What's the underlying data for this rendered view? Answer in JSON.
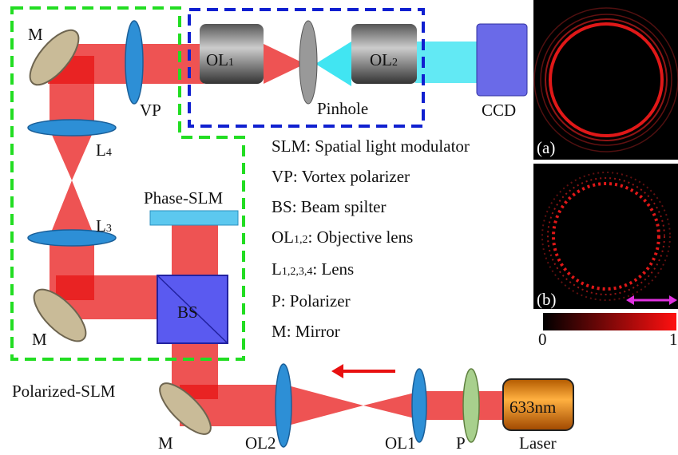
{
  "setup": {
    "mirror_top": "M",
    "vp": "VP",
    "ol1_top": {
      "name": "OL",
      "index": "1"
    },
    "ol2_top": {
      "name": "OL",
      "index": "2"
    },
    "pinhole": "Pinhole",
    "ccd": "CCD",
    "l4": {
      "name": "L",
      "index": "4"
    },
    "l3": {
      "name": "L",
      "index": "3"
    },
    "phase_slm": "Phase-SLM",
    "bs": "BS",
    "mirror_left": "M",
    "polarized_slm": "Polarized-SLM",
    "mirror_bottom": "M",
    "ol2_bottom": "OL2",
    "ol1_bottom": "OL1",
    "p": "P",
    "laser_wavelength": "633nm",
    "laser": "Laser"
  },
  "legend": [
    {
      "term": {
        "name": "SLM"
      },
      "description": ": Spatial light modulator"
    },
    {
      "term": {
        "name": "VP"
      },
      "description": ": Vortex polarizer"
    },
    {
      "term": {
        "name": "BS"
      },
      "description": ": Beam spilter"
    },
    {
      "term": {
        "name": "OL",
        "index": "1,2"
      },
      "description": ": Objective lens"
    },
    {
      "term": {
        "name": "L",
        "index": "1,2,3,4"
      },
      "description": ": Lens"
    },
    {
      "term": {
        "name": "P"
      },
      "description": ": Polarizer"
    },
    {
      "term": {
        "name": "M"
      },
      "description": ": Mirror"
    }
  ],
  "panels": {
    "a": "(a)",
    "b": "(b)"
  },
  "colorbar": {
    "min": 0,
    "max": 1
  }
}
